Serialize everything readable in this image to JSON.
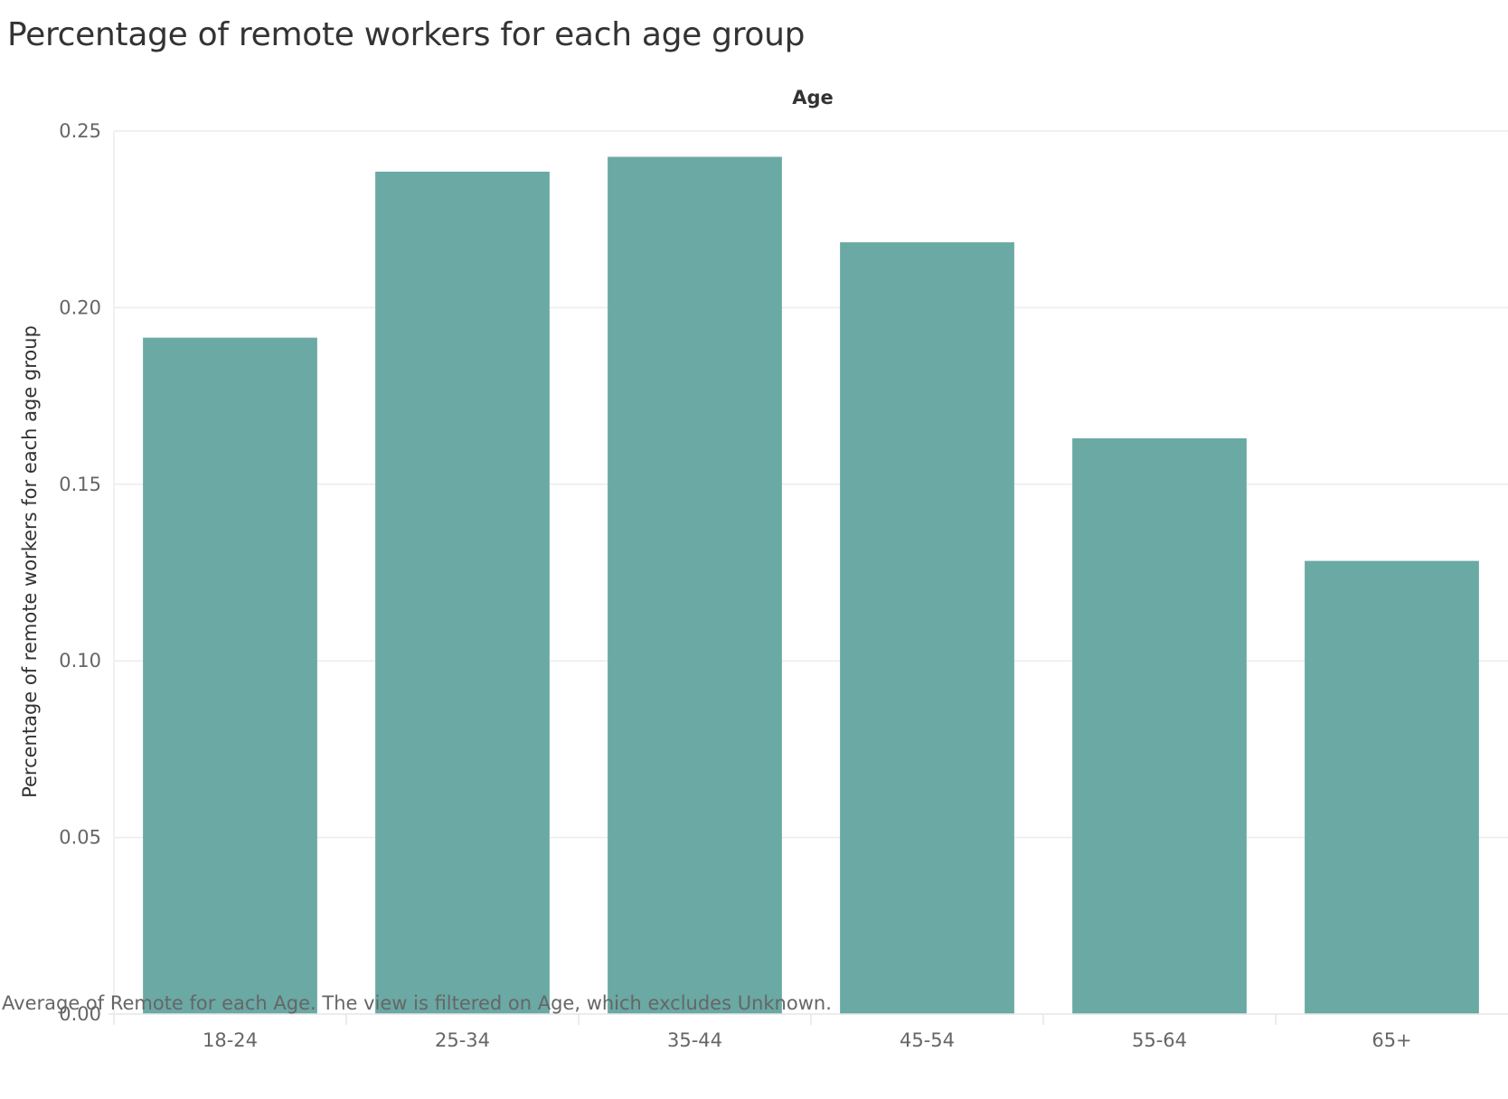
{
  "chart_data": {
    "type": "bar",
    "title": "Percentage of remote workers for each age group",
    "column_header": "Age",
    "ylabel": "Percentage of remote workers for each age group",
    "caption": "Average of Remote for each Age. The view is filtered on Age, which excludes Unknown.",
    "categories": [
      "18-24",
      "25-34",
      "35-44",
      "45-54",
      "55-64",
      "65+"
    ],
    "values": [
      0.1915,
      0.2385,
      0.2427,
      0.2185,
      0.163,
      0.1283
    ],
    "ylim": [
      0,
      0.25
    ],
    "yticks": [
      "0.00",
      "0.05",
      "0.10",
      "0.15",
      "0.20",
      "0.25"
    ],
    "bar_color": "#6aa9a4",
    "grid": true,
    "legend": "none"
  }
}
